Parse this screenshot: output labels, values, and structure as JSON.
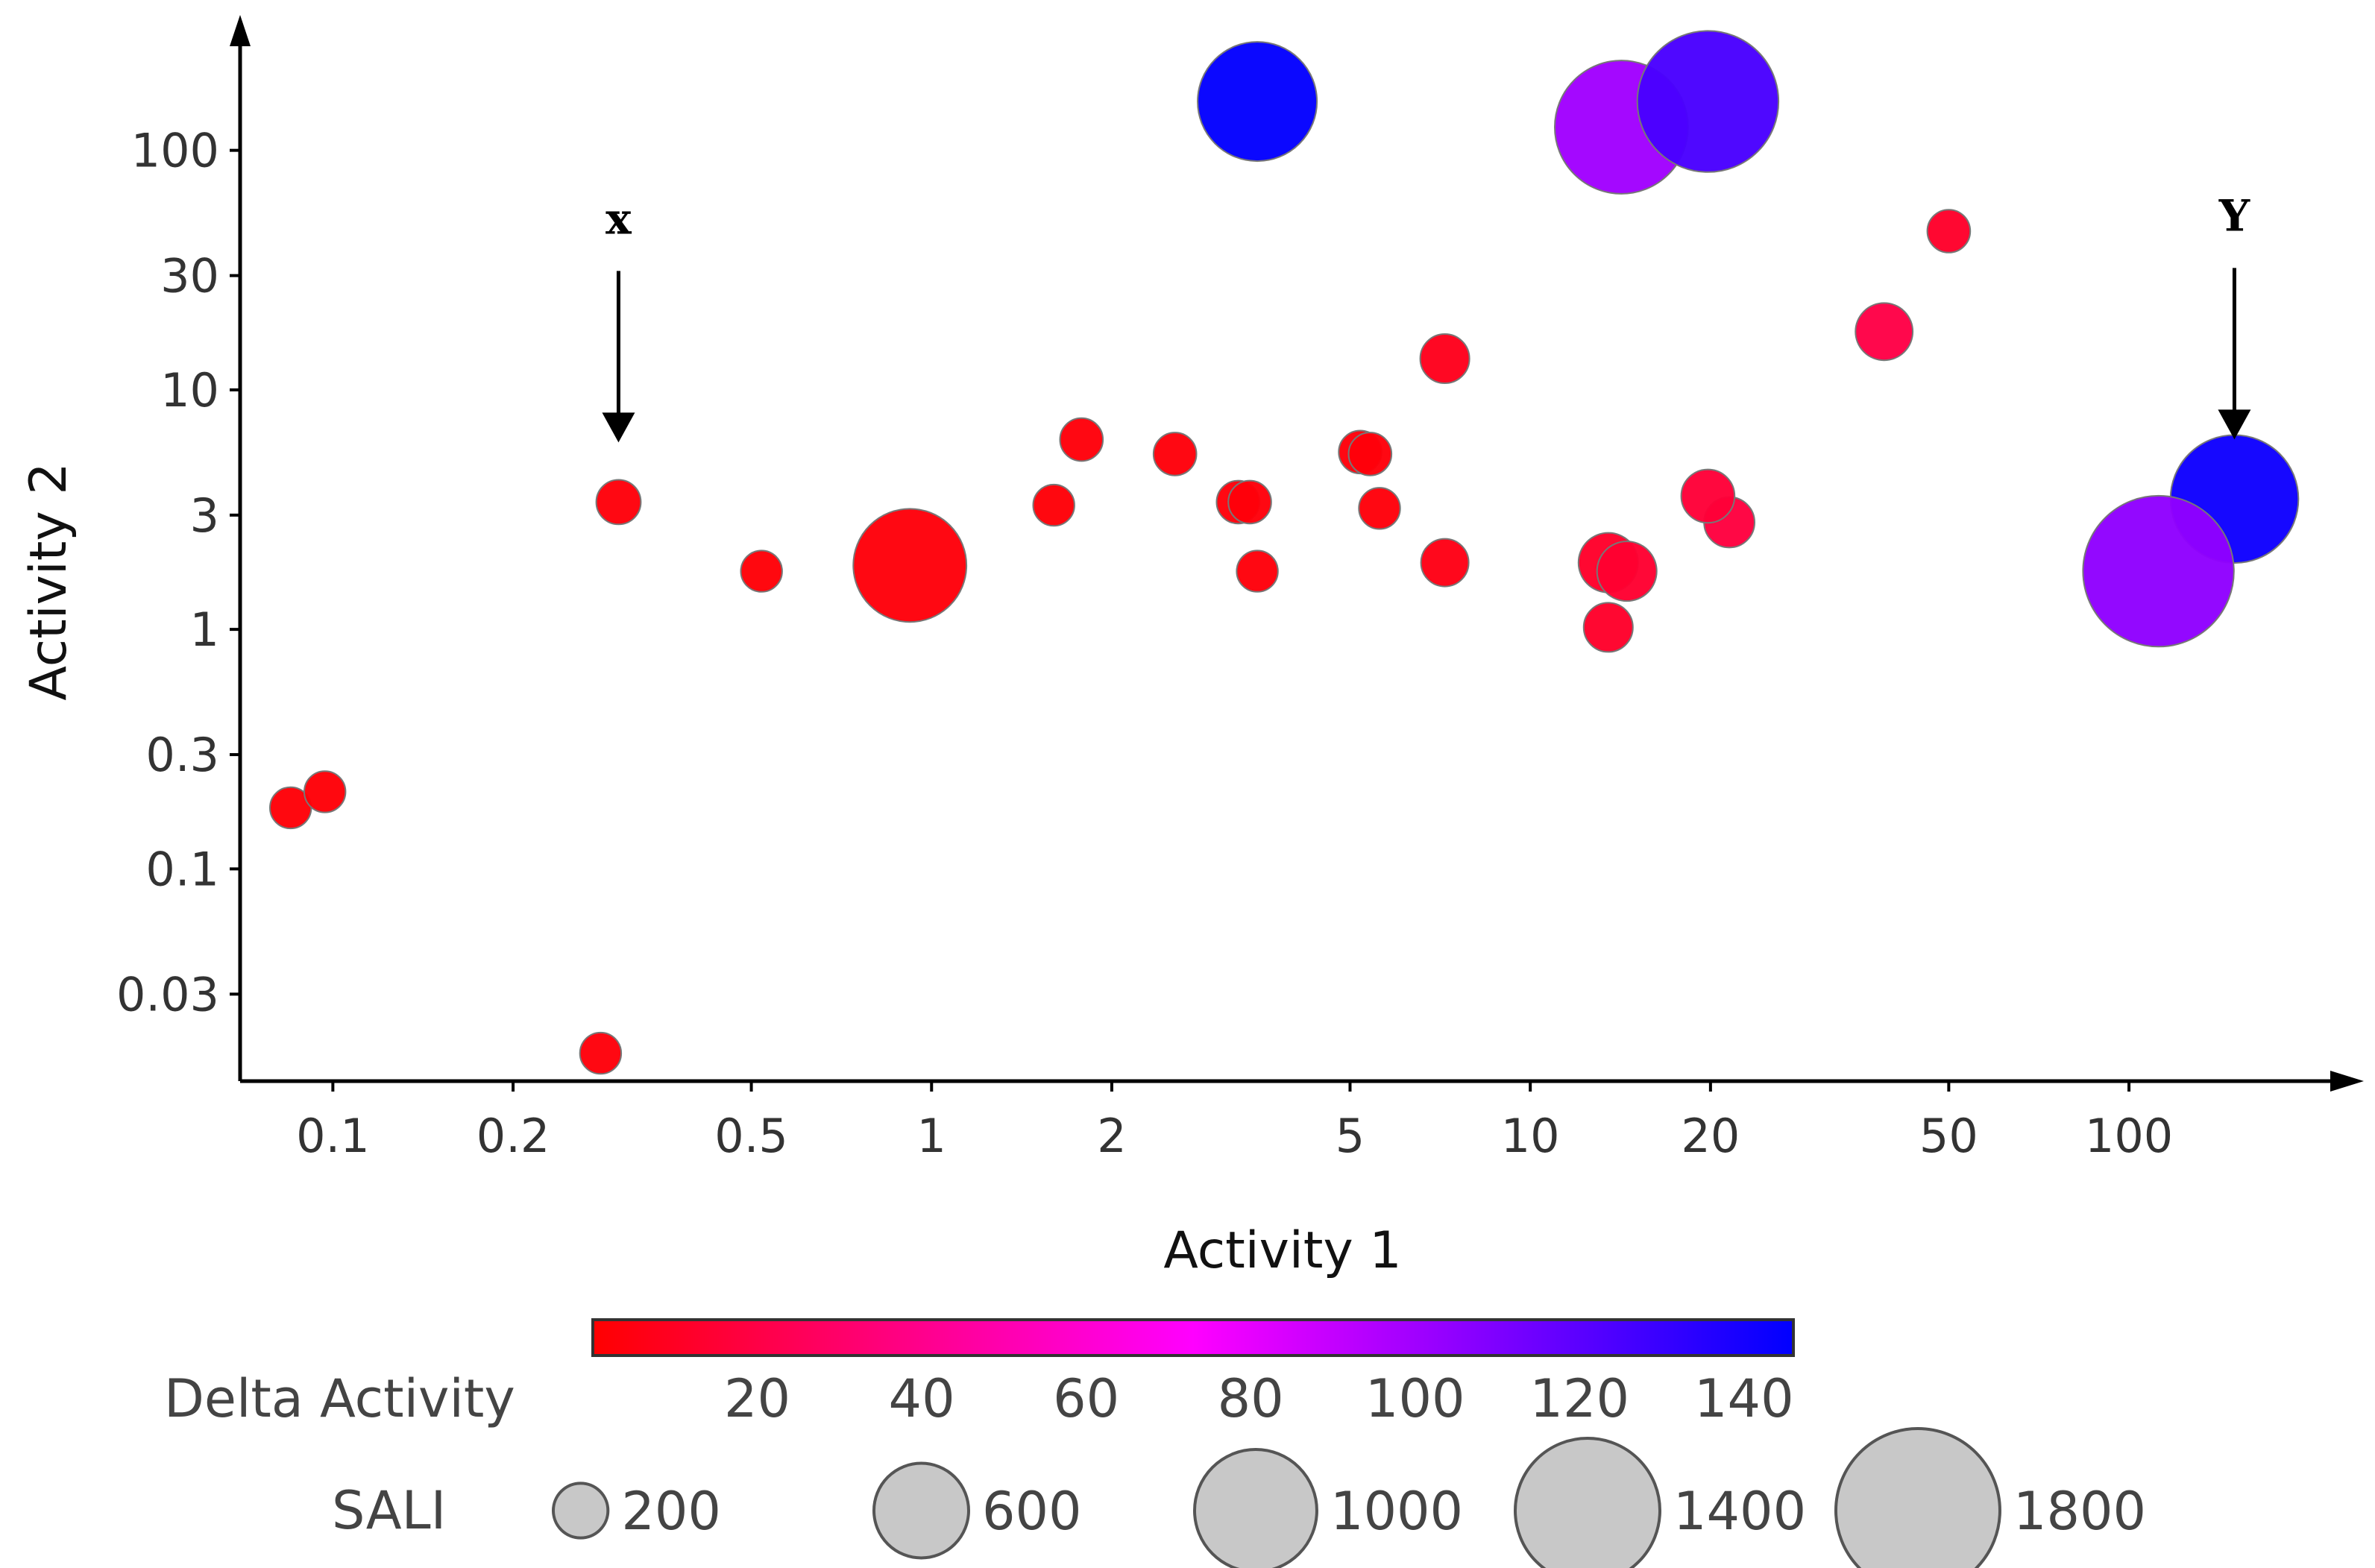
{
  "chart_data": {
    "type": "scatter",
    "title": "",
    "xlabel": "Activity 1",
    "ylabel": "Activity 2",
    "xscale": "log",
    "yscale": "log",
    "xlim": [
      0.07,
      220
    ],
    "ylim": [
      0.013,
      280
    ],
    "xticks": [
      {
        "value": 0.1,
        "label": "0.1"
      },
      {
        "value": 0.2,
        "label": "0.2"
      },
      {
        "value": 0.5,
        "label": "0.5"
      },
      {
        "value": 1,
        "label": "1"
      },
      {
        "value": 2,
        "label": "2"
      },
      {
        "value": 5,
        "label": "5"
      },
      {
        "value": 10,
        "label": "10"
      },
      {
        "value": 20,
        "label": "20"
      },
      {
        "value": 50,
        "label": "50"
      },
      {
        "value": 100,
        "label": "100"
      }
    ],
    "yticks": [
      {
        "value": 0.03,
        "label": "0.03"
      },
      {
        "value": 0.1,
        "label": "0.1"
      },
      {
        "value": 0.3,
        "label": "0.3"
      },
      {
        "value": 1,
        "label": "1"
      },
      {
        "value": 3,
        "label": "3"
      },
      {
        "value": 10,
        "label": "10"
      },
      {
        "value": 30,
        "label": "30"
      },
      {
        "value": 100,
        "label": "100"
      }
    ],
    "color_by": "Delta Activity",
    "size_by": "SALI",
    "points": [
      {
        "x": 0.085,
        "y": 0.18,
        "delta": 2,
        "sali": 120
      },
      {
        "x": 0.097,
        "y": 0.21,
        "delta": 2,
        "sali": 120
      },
      {
        "x": 0.28,
        "y": 0.017,
        "delta": 3,
        "sali": 120
      },
      {
        "x": 0.3,
        "y": 3.4,
        "delta": 3,
        "sali": 140
      },
      {
        "x": 0.52,
        "y": 1.75,
        "delta": 2,
        "sali": 120
      },
      {
        "x": 0.92,
        "y": 1.85,
        "delta": 3,
        "sali": 900
      },
      {
        "x": 1.6,
        "y": 3.3,
        "delta": 2,
        "sali": 120
      },
      {
        "x": 1.78,
        "y": 6.2,
        "delta": 3,
        "sali": 130
      },
      {
        "x": 2.55,
        "y": 5.4,
        "delta": 3,
        "sali": 130
      },
      {
        "x": 3.25,
        "y": 3.4,
        "delta": 3,
        "sali": 130
      },
      {
        "x": 3.4,
        "y": 3.4,
        "delta": 3,
        "sali": 130
      },
      {
        "x": 3.5,
        "y": 1.75,
        "delta": 3,
        "sali": 120
      },
      {
        "x": 5.2,
        "y": 5.5,
        "delta": 3,
        "sali": 130
      },
      {
        "x": 5.4,
        "y": 5.4,
        "delta": 3,
        "sali": 130
      },
      {
        "x": 5.6,
        "y": 3.2,
        "delta": 3,
        "sali": 120
      },
      {
        "x": 7.2,
        "y": 13.5,
        "delta": 8,
        "sali": 170
      },
      {
        "x": 7.2,
        "y": 1.9,
        "delta": 6,
        "sali": 160
      },
      {
        "x": 13.5,
        "y": 1.02,
        "delta": 12,
        "sali": 170
      },
      {
        "x": 13.5,
        "y": 1.9,
        "delta": 12,
        "sali": 250
      },
      {
        "x": 14.5,
        "y": 1.75,
        "delta": 14,
        "sali": 250
      },
      {
        "x": 19.8,
        "y": 3.6,
        "delta": 16,
        "sali": 200
      },
      {
        "x": 21.5,
        "y": 2.8,
        "delta": 18,
        "sali": 180
      },
      {
        "x": 39,
        "y": 17.5,
        "delta": 20,
        "sali": 230
      },
      {
        "x": 50,
        "y": 46,
        "delta": 12,
        "sali": 130
      },
      {
        "x": 3.5,
        "y": 160,
        "delta": 145,
        "sali": 1000
      },
      {
        "x": 14.2,
        "y": 125,
        "delta": 100,
        "sali": 1250
      },
      {
        "x": 19.8,
        "y": 160,
        "delta": 125,
        "sali": 1400
      },
      {
        "x": 112,
        "y": 1.75,
        "delta": 105,
        "sali": 1600
      },
      {
        "x": 150,
        "y": 3.5,
        "delta": 142,
        "sali": 1150
      }
    ],
    "annotations": [
      {
        "label": "x",
        "x": 0.3,
        "y": 3.4
      },
      {
        "label": "Y",
        "x": 150,
        "y": 3.5
      }
    ],
    "colorbar": {
      "title": "Delta Activity",
      "min": 0,
      "max": 146,
      "ticks": [
        20,
        40,
        60,
        80,
        100,
        120,
        140
      ],
      "colors": [
        "#ff0000",
        "#ff00ff",
        "#0000ff"
      ]
    },
    "size_legend": {
      "title": "SALI",
      "values": [
        200,
        600,
        1000,
        1400,
        1800
      ]
    }
  }
}
